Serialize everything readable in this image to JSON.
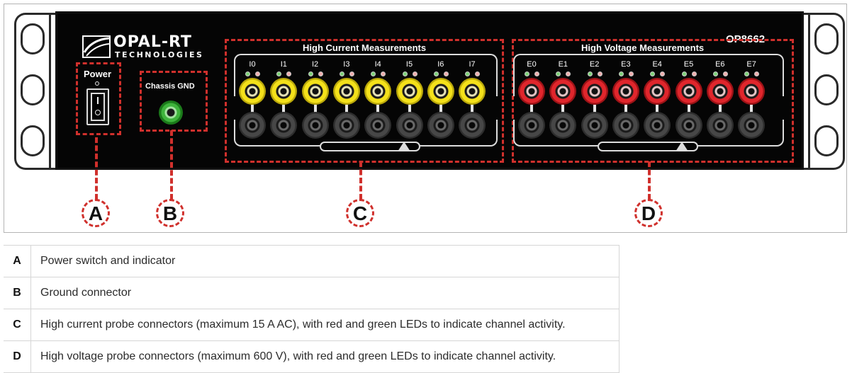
{
  "device": {
    "brand_line1": "OPAL-RT",
    "brand_line2": "TECHNOLOGIES",
    "model": "OP8662",
    "power_label": "Power",
    "ground_label": "Chassis GND",
    "high_current_title": "High Current Measurements",
    "high_voltage_title": "High Voltage Measurements",
    "current_channels": [
      "I0",
      "I1",
      "I2",
      "I3",
      "I4",
      "I5",
      "I6",
      "I7"
    ],
    "voltage_channels": [
      "E0",
      "E1",
      "E2",
      "E3",
      "E4",
      "E5",
      "E6",
      "E7"
    ]
  },
  "callouts": [
    "A",
    "B",
    "C",
    "D"
  ],
  "legend": [
    {
      "key": "A",
      "text": "Power switch and indicator"
    },
    {
      "key": "B",
      "text": "Ground connector"
    },
    {
      "key": "C",
      "text": "High current probe connectors (maximum 15 A AC), with red and green LEDs to indicate channel activity."
    },
    {
      "key": "D",
      "text": "High voltage probe connectors (maximum 600 V), with red and green LEDs to indicate channel activity."
    }
  ],
  "colors": {
    "accent_dash": "#d0302c",
    "current_jack": "#f4e11a",
    "voltage_jack": "#e0262c",
    "ground_jack": "#3fb43c"
  }
}
